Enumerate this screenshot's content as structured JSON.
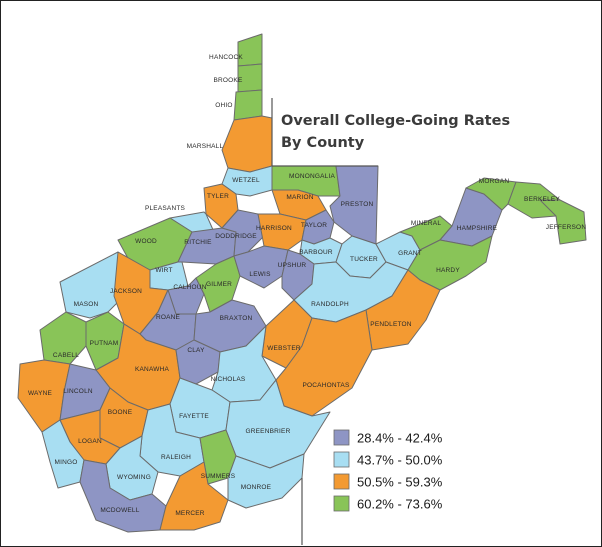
{
  "title": {
    "line1": "Overall College-Going Rates",
    "line2": "By County"
  },
  "colors": {
    "range1": "#8e95c4",
    "range2": "#a8def2",
    "range3": "#f39a32",
    "range4": "#89c458"
  },
  "legend": [
    {
      "label": "28.4% - 42.4%",
      "color": "#8e95c4"
    },
    {
      "label": "43.7% - 50.0%",
      "color": "#a8def2"
    },
    {
      "label": "50.5% - 59.3%",
      "color": "#f39a32"
    },
    {
      "label": "60.2% - 73.6%",
      "color": "#89c458"
    }
  ],
  "counties": [
    {
      "name": "HANCOCK",
      "range": 4
    },
    {
      "name": "BROOKE",
      "range": 4
    },
    {
      "name": "OHIO",
      "range": 4
    },
    {
      "name": "MARSHALL",
      "range": 3
    },
    {
      "name": "WETZEL",
      "range": 2
    },
    {
      "name": "MONONGALIA",
      "range": 4
    },
    {
      "name": "PRESTON",
      "range": 1
    },
    {
      "name": "MARION",
      "range": 3
    },
    {
      "name": "TYLER",
      "range": 3
    },
    {
      "name": "PLEASANTS",
      "range": 2
    },
    {
      "name": "WOOD",
      "range": 4
    },
    {
      "name": "RITCHIE",
      "range": 1
    },
    {
      "name": "DODDRIDGE",
      "range": 1
    },
    {
      "name": "HARRISON",
      "range": 3
    },
    {
      "name": "TAYLOR",
      "range": 1
    },
    {
      "name": "BARBOUR",
      "range": 2
    },
    {
      "name": "TUCKER",
      "range": 2
    },
    {
      "name": "GRANT",
      "range": 2
    },
    {
      "name": "MINERAL",
      "range": 4
    },
    {
      "name": "HAMPSHIRE",
      "range": 1
    },
    {
      "name": "MORGAN",
      "range": 4
    },
    {
      "name": "BERKELEY",
      "range": 4
    },
    {
      "name": "JEFFERSON",
      "range": 4
    },
    {
      "name": "HARDY",
      "range": 4
    },
    {
      "name": "WIRT",
      "range": 2
    },
    {
      "name": "CALHOUN",
      "range": 1
    },
    {
      "name": "GILMER",
      "range": 4
    },
    {
      "name": "LEWIS",
      "range": 1
    },
    {
      "name": "UPSHUR",
      "range": 1
    },
    {
      "name": "RANDOLPH",
      "range": 2
    },
    {
      "name": "PENDLETON",
      "range": 3
    },
    {
      "name": "MASON",
      "range": 2
    },
    {
      "name": "JACKSON",
      "range": 3
    },
    {
      "name": "ROANE",
      "range": 1
    },
    {
      "name": "BRAXTON",
      "range": 1
    },
    {
      "name": "WEBSTER",
      "range": 3
    },
    {
      "name": "POCAHONTAS",
      "range": 3
    },
    {
      "name": "CABELL",
      "range": 4
    },
    {
      "name": "PUTNAM",
      "range": 4
    },
    {
      "name": "KANAWHA",
      "range": 3
    },
    {
      "name": "CLAY",
      "range": 1
    },
    {
      "name": "NICHOLAS",
      "range": 2
    },
    {
      "name": "WAYNE",
      "range": 3
    },
    {
      "name": "LINCOLN",
      "range": 1
    },
    {
      "name": "BOONE",
      "range": 3
    },
    {
      "name": "FAYETTE",
      "range": 2
    },
    {
      "name": "GREENBRIER",
      "range": 2
    },
    {
      "name": "LOGAN",
      "range": 3
    },
    {
      "name": "MINGO",
      "range": 2
    },
    {
      "name": "RALEIGH",
      "range": 2
    },
    {
      "name": "WYOMING",
      "range": 2
    },
    {
      "name": "SUMMERS",
      "range": 4
    },
    {
      "name": "MONROE",
      "range": 2
    },
    {
      "name": "MCDOWELL",
      "range": 1
    },
    {
      "name": "MERCER",
      "range": 3
    }
  ]
}
